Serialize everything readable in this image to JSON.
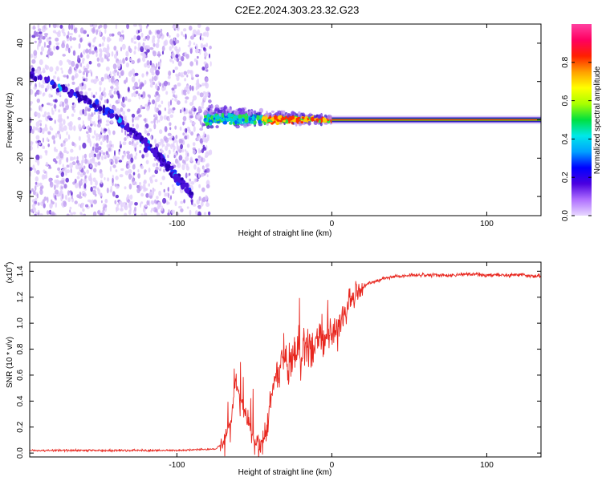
{
  "title": "C2E2.2024.303.23.32.G23",
  "colors": {
    "snr_line": "#e8261e",
    "scatter_dark": "#3c00b8",
    "scatter_light": "#c8a8f0",
    "axis": "#000000"
  },
  "chart_data": [
    {
      "type": "heatmap",
      "name": "spectrogram",
      "xlabel": "Height of straight line (km)",
      "ylabel": "Frequency (Hz)",
      "xlim": [
        -195,
        135
      ],
      "ylim": [
        -50,
        50
      ],
      "xticks": [
        -100,
        0,
        100
      ],
      "xtick_labels": [
        "-100",
        "0",
        "100"
      ],
      "yticks": [
        -40,
        -20,
        0,
        20,
        40
      ],
      "ytick_labels": [
        "-40",
        "-20",
        "0",
        "20",
        "40"
      ],
      "regions": [
        {
          "kind": "noise_scatter",
          "x_range": [
            -195,
            -82
          ],
          "freq_range": [
            -50,
            50
          ]
        },
        {
          "kind": "diagonal_trace",
          "points": [
            [
              -195,
              25
            ],
            [
              -140,
              2
            ],
            [
              -110,
              -20
            ],
            [
              -90,
              -40
            ]
          ]
        },
        {
          "kind": "signal_scatter",
          "x_range": [
            -82,
            0
          ],
          "freq_spread": 8
        },
        {
          "kind": "carrier_line",
          "x_range": [
            0,
            135
          ],
          "freq": 0
        }
      ]
    },
    {
      "type": "colorbar",
      "label": "Normalized spectral amplitude",
      "range": [
        0,
        1
      ],
      "ticks": [
        0.0,
        0.2,
        0.4,
        0.6,
        0.8
      ],
      "tick_labels": [
        "0.0",
        "0.2",
        "0.4",
        "0.6",
        "0.8"
      ],
      "colors": [
        "#e8d8ff",
        "#b070ff",
        "#4a00e0",
        "#0000ff",
        "#00a0ff",
        "#00e8e8",
        "#00e040",
        "#a8ff00",
        "#ffff00",
        "#ffa000",
        "#ff2000",
        "#ff0060",
        "#ff40a0"
      ]
    },
    {
      "type": "line",
      "name": "snr",
      "xlabel": "Height of straight line (km)",
      "ylabel": "SNR (10 * v/v)",
      "y_multiplier_label": "(x10",
      "y_multiplier_exp": "4",
      "y_multiplier_close": ")",
      "xlim": [
        -195,
        135
      ],
      "ylim": [
        -0.03,
        1.47
      ],
      "xticks": [
        -100,
        0,
        100
      ],
      "xtick_labels": [
        "-100",
        "0",
        "100"
      ],
      "yticks": [
        0.0,
        0.2,
        0.4,
        0.6,
        0.8,
        1.0,
        1.2,
        1.4
      ],
      "ytick_labels": [
        "0.0",
        "0.2",
        "0.4",
        "0.6",
        "0.8",
        "1.0",
        "1.2",
        "1.4"
      ],
      "series": [
        {
          "name": "SNR",
          "x": [
            -195,
            -150,
            -100,
            -75,
            -70,
            -67,
            -64,
            -62,
            -60,
            -58,
            -56,
            -54,
            -52,
            -50,
            -48,
            -45,
            -42,
            -40,
            -38,
            -35,
            -32,
            -30,
            -28,
            -25,
            -22,
            -20,
            -18,
            -15,
            -12,
            -10,
            -8,
            -5,
            -2,
            0,
            2,
            5,
            8,
            10,
            12,
            15,
            18,
            20,
            25,
            30,
            35,
            40,
            45,
            50,
            60,
            70,
            80,
            90,
            100,
            110,
            120,
            135
          ],
          "y": [
            0.02,
            0.02,
            0.02,
            0.03,
            0.08,
            0.18,
            0.35,
            0.55,
            0.45,
            0.38,
            0.32,
            0.25,
            0.15,
            0.1,
            0.08,
            0.08,
            0.15,
            0.35,
            0.5,
            0.6,
            0.72,
            0.8,
            0.6,
            0.75,
            0.8,
            0.7,
            0.82,
            0.85,
            0.78,
            0.9,
            0.88,
            0.86,
            0.9,
            0.92,
            0.95,
            1.0,
            1.05,
            1.12,
            1.17,
            1.22,
            1.25,
            1.28,
            1.31,
            1.33,
            1.35,
            1.36,
            1.36,
            1.37,
            1.37,
            1.37,
            1.37,
            1.38,
            1.37,
            1.37,
            1.37,
            1.36
          ]
        }
      ]
    }
  ]
}
